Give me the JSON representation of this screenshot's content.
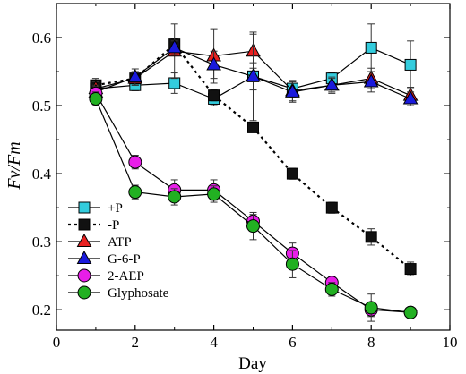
{
  "chart_data": {
    "type": "line",
    "title": "",
    "xlabel": "Day",
    "ylabel": "Fv/Fm",
    "xlim": [
      0,
      10
    ],
    "ylim": [
      0.17,
      0.65
    ],
    "xticks": [
      "0",
      "2",
      "4",
      "6",
      "8",
      "10"
    ],
    "yticks": [
      "0.2",
      "0.3",
      "0.4",
      "0.5",
      "0.6"
    ],
    "legend_position": "bottom-left",
    "x": [
      1,
      2,
      3,
      4,
      5,
      6,
      7,
      8,
      9
    ],
    "series": [
      {
        "name": "+P",
        "marker": "square",
        "line": "solid",
        "marker_color": "#33ccdd",
        "y": [
          0.525,
          0.53,
          0.533,
          0.51,
          0.543,
          0.525,
          0.54,
          0.585,
          0.56
        ],
        "err": [
          0.01,
          0.008,
          0.015,
          0.01,
          0.02,
          0.012,
          0.008,
          0.035,
          0.035
        ]
      },
      {
        "name": "-P",
        "marker": "square",
        "line": "dotted",
        "marker_color": "#111111",
        "y": [
          0.53,
          0.54,
          0.59,
          0.515,
          0.468,
          0.4,
          0.35,
          0.307,
          0.26
        ],
        "err": [
          0.01,
          0.01,
          0.008,
          0.008,
          0.007,
          0.008,
          0.008,
          0.012,
          0.01
        ]
      },
      {
        "name": "ATP",
        "marker": "triangle",
        "line": "solid",
        "marker_color": "#e82020",
        "y": [
          0.525,
          0.54,
          0.58,
          0.573,
          0.58,
          0.522,
          0.53,
          0.54,
          0.515
        ],
        "err": [
          0.01,
          0.01,
          0.04,
          0.04,
          0.025,
          0.015,
          0.012,
          0.015,
          0.012
        ]
      },
      {
        "name": "G-6-P",
        "marker": "triangle",
        "line": "solid",
        "marker_color": "#1a1adc",
        "y": [
          0.52,
          0.542,
          0.585,
          0.56,
          0.543,
          0.52,
          0.53,
          0.535,
          0.51
        ],
        "err": [
          0.01,
          0.012,
          0.01,
          0.02,
          0.065,
          0.015,
          0.01,
          0.015,
          0.01
        ]
      },
      {
        "name": "2-AEP",
        "marker": "circle",
        "line": "solid",
        "marker_color": "#e81ee8",
        "y": [
          0.518,
          0.417,
          0.376,
          0.376,
          0.33,
          0.283,
          0.24,
          0.2,
          0.196
        ],
        "err": [
          0.01,
          0.01,
          0.015,
          0.015,
          0.01,
          0.015,
          0.008,
          0.01,
          0.005
        ]
      },
      {
        "name": "Glyphosate",
        "marker": "circle",
        "line": "solid",
        "marker_color": "#22b022",
        "y": [
          0.51,
          0.373,
          0.366,
          0.37,
          0.323,
          0.267,
          0.23,
          0.203,
          0.196
        ],
        "err": [
          0.01,
          0.01,
          0.012,
          0.012,
          0.02,
          0.02,
          0.01,
          0.02,
          0.005
        ]
      }
    ]
  }
}
